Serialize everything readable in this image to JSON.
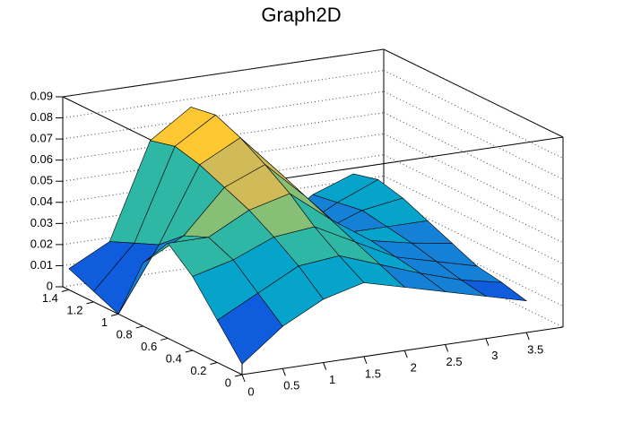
{
  "chart_data": {
    "type": "surface",
    "title": "Graph2D",
    "x": [
      0,
      0.5,
      1,
      1.5,
      2,
      2.5,
      3,
      3.5
    ],
    "y": [
      0,
      0.2,
      0.4,
      0.6,
      0.8,
      1,
      1.2,
      1.4
    ],
    "z": [
      [
        0.005,
        0.02,
        0.03,
        0.035,
        0.03,
        0.025,
        0.02,
        0.015
      ],
      [
        0.02,
        0.03,
        0.04,
        0.042,
        0.035,
        0.028,
        0.022,
        0.018
      ],
      [
        0.035,
        0.04,
        0.048,
        0.05,
        0.04,
        0.03,
        0.025,
        0.02
      ],
      [
        0.045,
        0.045,
        0.055,
        0.06,
        0.045,
        0.032,
        0.028,
        0.025
      ],
      [
        0.03,
        0.04,
        0.06,
        0.068,
        0.05,
        0.03,
        0.03,
        0.03
      ],
      [
        0.0,
        0.03,
        0.065,
        0.075,
        0.055,
        0.025,
        0.032,
        0.035
      ],
      [
        0.005,
        0.025,
        0.068,
        0.08,
        0.058,
        0.02,
        0.03,
        0.038
      ],
      [
        0.01,
        0.02,
        0.065,
        0.078,
        0.055,
        0.015,
        0.028,
        0.035
      ]
    ],
    "xlim": [
      0,
      3.95
    ],
    "xticks": [
      0,
      0.5,
      1,
      1.5,
      2,
      2.5,
      3,
      3.5
    ],
    "ylim": [
      0,
      1.45
    ],
    "yticks": [
      0,
      0.2,
      0.4,
      0.6,
      0.8,
      1,
      1.2,
      1.4
    ],
    "zlim": [
      0,
      0.09
    ],
    "zticks": [
      0,
      0.01,
      0.02,
      0.03,
      0.04,
      0.05,
      0.06,
      0.07,
      0.08,
      0.09
    ],
    "grid": true,
    "colormap": [
      "#352a87",
      "#0f5cdd",
      "#1481d6",
      "#06a4ca",
      "#2eb7a4",
      "#87bf77",
      "#d1bb59",
      "#fec832",
      "#f9fb0e"
    ]
  }
}
